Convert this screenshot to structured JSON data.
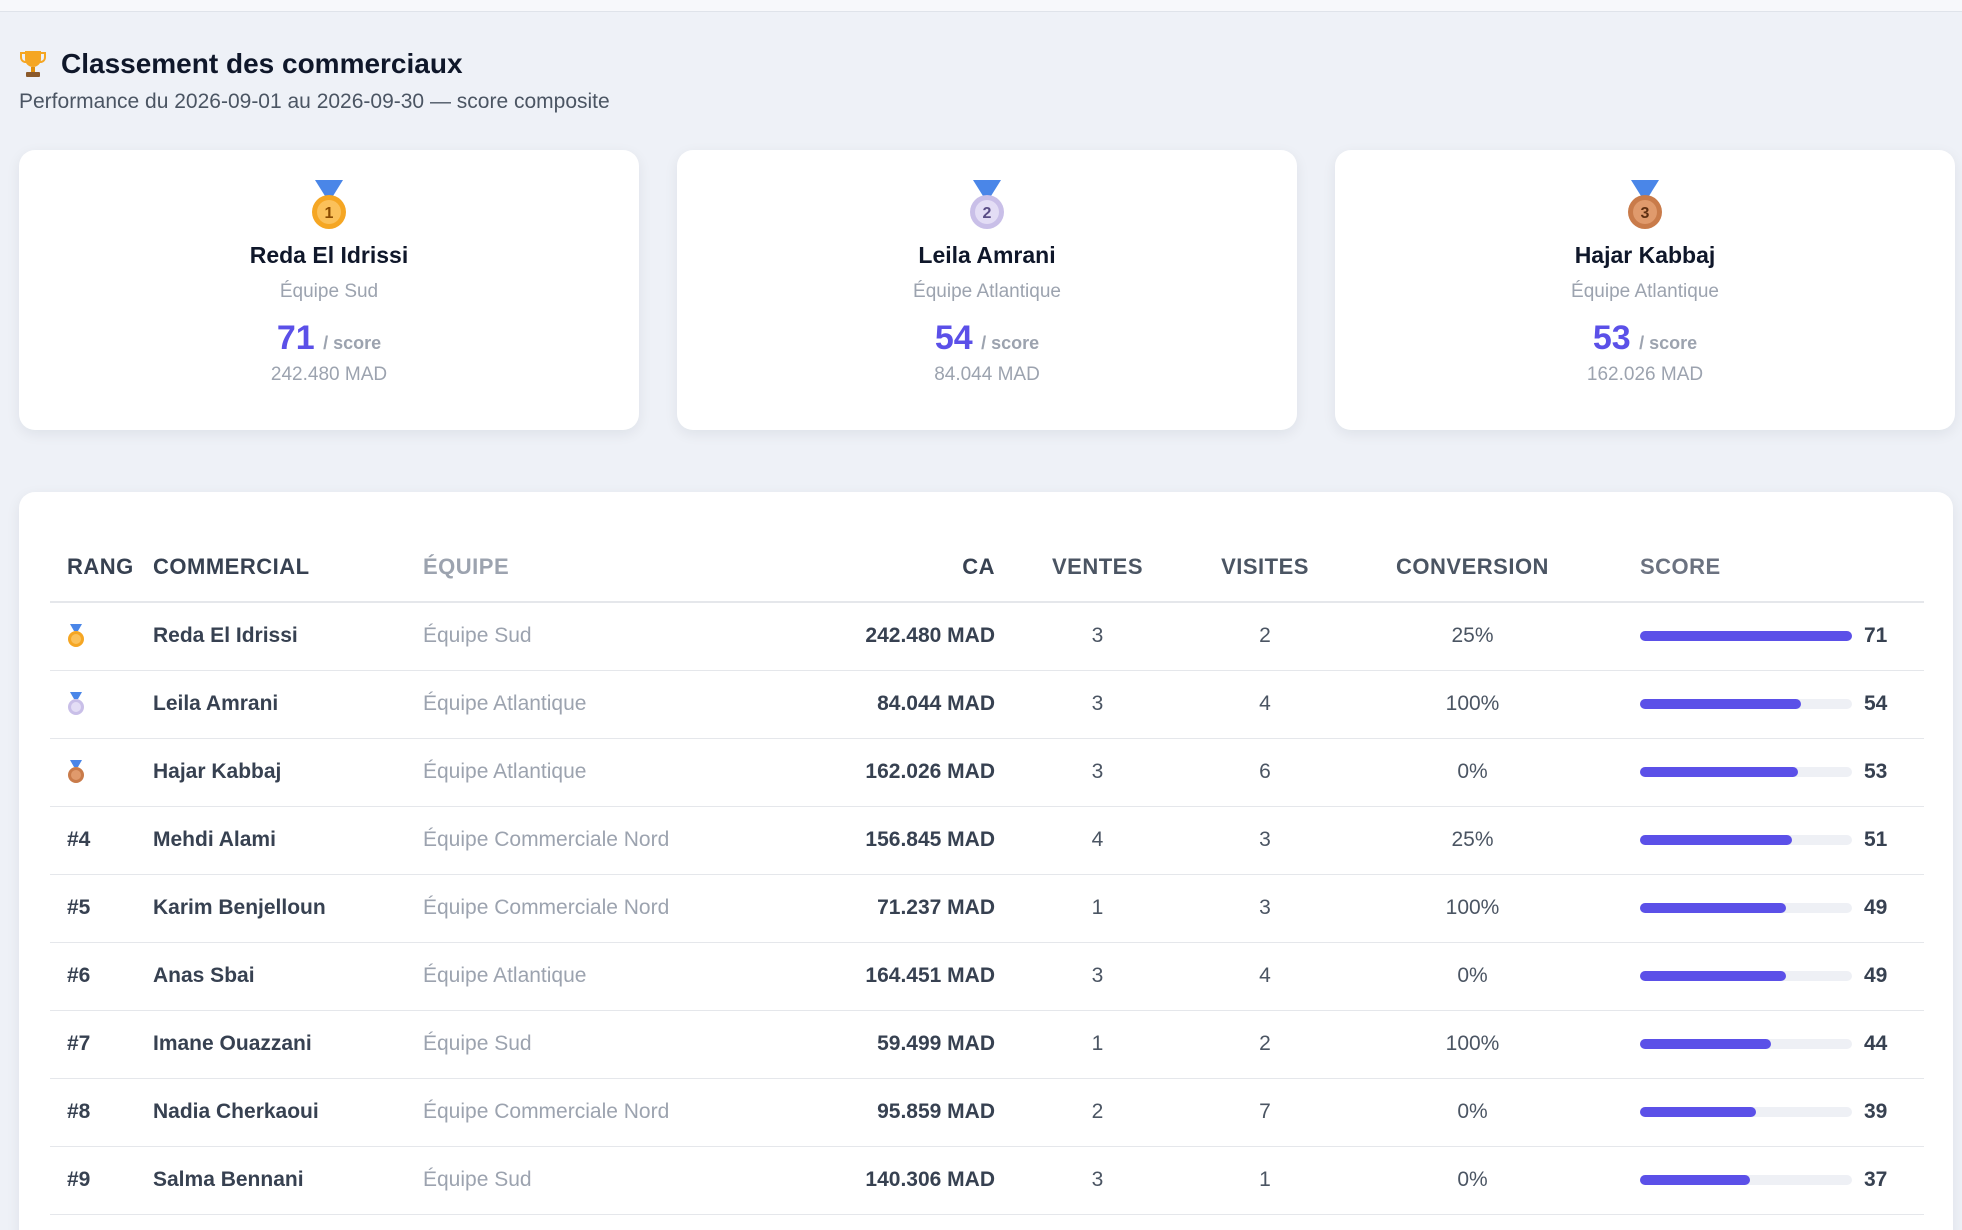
{
  "page": {
    "title": "Classement des commerciaux",
    "subtitle": "Performance du 2026-09-01 au 2026-09-30 — score composite"
  },
  "podium": [
    {
      "medal_number": "1",
      "name": "Reda El Idrissi",
      "team": "Équipe Sud",
      "score": "71",
      "score_unit": "/ score",
      "ca": "242.480 MAD",
      "medal_color": "#f5a623"
    },
    {
      "medal_number": "2",
      "name": "Leila Amrani",
      "team": "Équipe Atlantique",
      "score": "54",
      "score_unit": "/ score",
      "ca": "84.044 MAD",
      "medal_color": "#c9bfe8"
    },
    {
      "medal_number": "3",
      "name": "Hajar Kabbaj",
      "team": "Équipe Atlantique",
      "score": "53",
      "score_unit": "/ score",
      "ca": "162.026 MAD",
      "medal_color": "#c97b4a"
    }
  ],
  "table": {
    "headers": {
      "rank": "Rang",
      "commercial": "Commercial",
      "team": "Équipe",
      "ca": "CA",
      "ventes": "Ventes",
      "visites": "Visites",
      "conversion": "Conversion",
      "score": "Score"
    },
    "rows": [
      {
        "rank": "",
        "medal": "gold",
        "name": "Reda El Idrissi",
        "team": "Équipe Sud",
        "ca": "242.480 MAD",
        "ventes": "3",
        "visites": "2",
        "conversion": "25%",
        "score": 71
      },
      {
        "rank": "",
        "medal": "silver",
        "name": "Leila Amrani",
        "team": "Équipe Atlantique",
        "ca": "84.044 MAD",
        "ventes": "3",
        "visites": "4",
        "conversion": "100%",
        "score": 54
      },
      {
        "rank": "",
        "medal": "bronze",
        "name": "Hajar Kabbaj",
        "team": "Équipe Atlantique",
        "ca": "162.026 MAD",
        "ventes": "3",
        "visites": "6",
        "conversion": "0%",
        "score": 53
      },
      {
        "rank": "#4",
        "medal": "",
        "name": "Mehdi Alami",
        "team": "Équipe Commerciale Nord",
        "ca": "156.845 MAD",
        "ventes": "4",
        "visites": "3",
        "conversion": "25%",
        "score": 51
      },
      {
        "rank": "#5",
        "medal": "",
        "name": "Karim Benjelloun",
        "team": "Équipe Commerciale Nord",
        "ca": "71.237 MAD",
        "ventes": "1",
        "visites": "3",
        "conversion": "100%",
        "score": 49
      },
      {
        "rank": "#6",
        "medal": "",
        "name": "Anas Sbai",
        "team": "Équipe Atlantique",
        "ca": "164.451 MAD",
        "ventes": "3",
        "visites": "4",
        "conversion": "0%",
        "score": 49
      },
      {
        "rank": "#7",
        "medal": "",
        "name": "Imane Ouazzani",
        "team": "Équipe Sud",
        "ca": "59.499 MAD",
        "ventes": "1",
        "visites": "2",
        "conversion": "100%",
        "score": 44
      },
      {
        "rank": "#8",
        "medal": "",
        "name": "Nadia Cherkaoui",
        "team": "Équipe Commerciale Nord",
        "ca": "95.859 MAD",
        "ventes": "2",
        "visites": "7",
        "conversion": "0%",
        "score": 39
      },
      {
        "rank": "#9",
        "medal": "",
        "name": "Salma Bennani",
        "team": "Équipe Sud",
        "ca": "140.306 MAD",
        "ventes": "3",
        "visites": "1",
        "conversion": "0%",
        "score": 37
      }
    ]
  },
  "colors": {
    "accent": "#5b50e8",
    "gold": "#f5a623",
    "silver": "#c9bfe8",
    "bronze": "#c97b4a",
    "ribbon": "#4a86e8"
  },
  "icons": {
    "title": "trophy-icon",
    "medal_gold": "gold-medal-icon",
    "medal_silver": "silver-medal-icon",
    "medal_bronze": "bronze-medal-icon"
  }
}
